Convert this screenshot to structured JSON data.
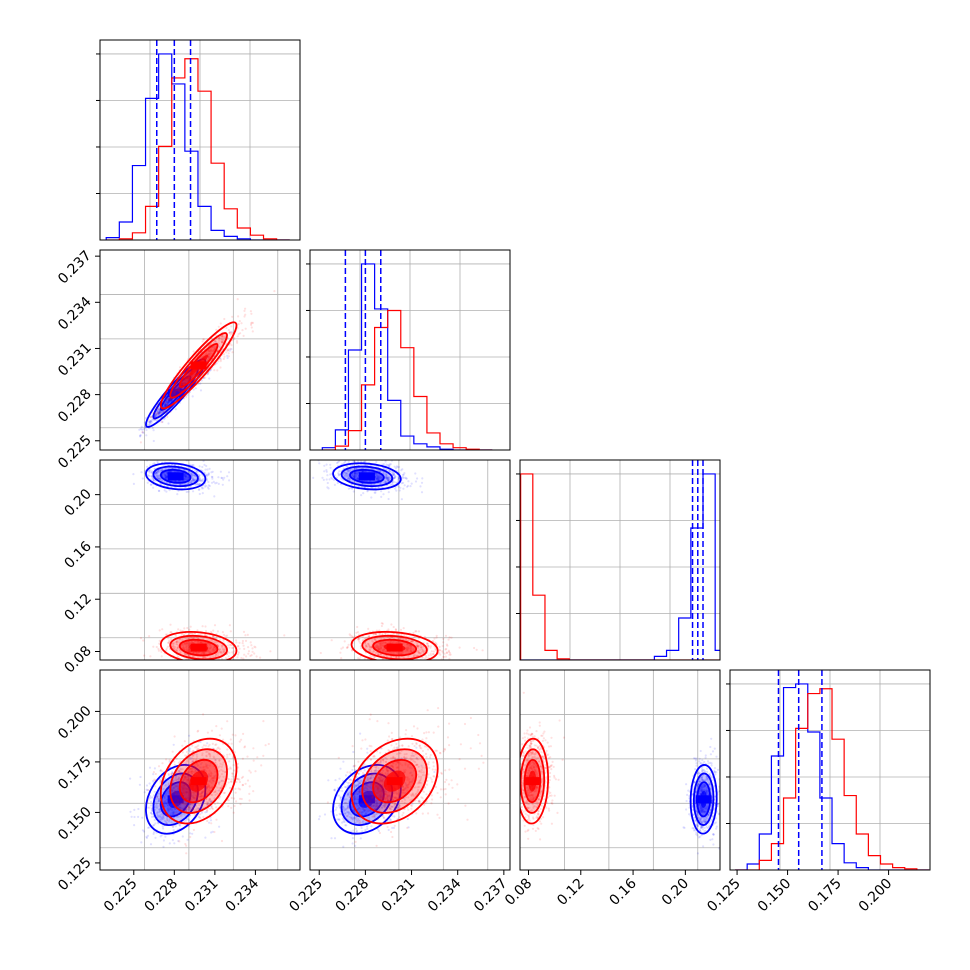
{
  "colors": {
    "series_a": "#0000ff",
    "series_b": "#ff0000",
    "grid": "#b0b0b0",
    "axes": "#000000"
  },
  "chart_data": {
    "type": "corner",
    "grid": true,
    "series": [
      {
        "color": "#0000ff",
        "param_means": [
          0.2281,
          0.2281,
          0.214,
          0.1565
        ],
        "param_stds": [
          0.0011,
          0.0011,
          0.005,
          0.0085
        ],
        "quantiles": [
          [
            0.2267,
            0.228,
            0.2292
          ],
          [
            0.2267,
            0.228,
            0.229
          ],
          [
            0.2055,
            0.2095,
            0.2135
          ],
          [
            0.1455,
            0.1555,
            0.167
          ]
        ]
      },
      {
        "color": "#ff0000",
        "param_means": [
          0.2298,
          0.2299,
          0.083,
          0.1655
        ],
        "param_stds": [
          0.0014,
          0.0014,
          0.006,
          0.0105
        ],
        "quantiles": null
      }
    ],
    "panels": [
      {
        "kind": "hist",
        "param": 0,
        "xlim": [
          0.2225,
          0.2373
        ],
        "xticks": [],
        "hists": [
          {
            "series": 0,
            "bins": [
              0.22296,
              0.22393,
              0.2249,
              0.22587,
              0.22684,
              0.22781,
              0.22878,
              0.22975,
              0.23072,
              0.23169,
              0.23266,
              0.23363,
              0.2346,
              0.23557,
              0.23654
            ],
            "counts": [
              2,
              15,
              62,
              118,
              155,
              130,
              74,
              28,
              8,
              3,
              1,
              0,
              0,
              0
            ]
          },
          {
            "series": 1,
            "bins": [
              0.22296,
              0.22393,
              0.2249,
              0.22587,
              0.22684,
              0.22781,
              0.22878,
              0.22975,
              0.23072,
              0.23169,
              0.23266,
              0.23363,
              0.2346,
              0.23557,
              0.23654
            ],
            "counts": [
              0,
              1,
              6,
              28,
              78,
              135,
              151,
              124,
              64,
              26,
              10,
              4,
              1,
              0
            ]
          }
        ]
      },
      {
        "kind": "hist",
        "param": 1,
        "xlim": [
          0.2244,
          0.2374
        ],
        "xticks": [],
        "hists": [
          {
            "series": 0,
            "bins": [
              0.2252,
              0.22605,
              0.2269,
              0.22775,
              0.2286,
              0.22945,
              0.2303,
              0.23115,
              0.232,
              0.23285,
              0.2337,
              0.23455,
              0.2354,
              0.23625
            ],
            "counts": [
              3,
              26,
              129,
              240,
              182,
              64,
              18,
              8,
              4,
              1,
              0,
              0,
              0
            ]
          },
          {
            "series": 1,
            "bins": [
              0.2252,
              0.22605,
              0.2269,
              0.22775,
              0.2286,
              0.22945,
              0.2303,
              0.23115,
              0.232,
              0.23285,
              0.2337,
              0.23455,
              0.2354,
              0.23625
            ],
            "counts": [
              0,
              5,
              25,
              84,
              158,
              180,
              132,
              69,
              22,
              8,
              3,
              1,
              0
            ]
          }
        ]
      },
      {
        "kind": "hist",
        "param": 2,
        "xlim": [
          0.0735,
          0.2265
        ],
        "xticks": [],
        "hists": [
          {
            "series": 0,
            "bins": [
              0.074,
              0.0833,
              0.0926,
              0.1019,
              0.1112,
              0.1205,
              0.1298,
              0.1391,
              0.1484,
              0.1577,
              0.167,
              0.1763,
              0.1856,
              0.1949,
              0.2042,
              0.2135,
              0.2228,
              0.2265
            ],
            "counts": [
              0,
              0,
              0,
              0,
              0,
              0,
              0,
              0,
              0,
              0,
              0,
              3,
              8,
              35,
              110,
              155,
              8
            ]
          },
          {
            "series": 1,
            "bins": [
              0.074,
              0.0833,
              0.0926,
              0.1019,
              0.1112,
              0.1205,
              0.1298,
              0.1391,
              0.1484,
              0.1577,
              0.167,
              0.1763,
              0.1856,
              0.1949,
              0.2042,
              0.2135,
              0.2228,
              0.2265
            ],
            "counts": [
              155,
              54,
              8,
              1,
              0,
              0,
              0,
              0,
              0,
              0,
              0,
              0,
              0,
              0,
              0,
              0,
              0
            ]
          }
        ]
      },
      {
        "kind": "hist",
        "param": 3,
        "xlim": [
          0.1215,
          0.2205
        ],
        "xticks": [
          0.125,
          0.15,
          0.175,
          0.2
        ],
        "hists": [
          {
            "series": 0,
            "bins": [
              0.124,
              0.13,
              0.136,
              0.142,
              0.148,
              0.154,
              0.16,
              0.166,
              0.172,
              0.178,
              0.184,
              0.19,
              0.196,
              0.202,
              0.208,
              0.214,
              0.22
            ],
            "counts": [
              0,
              5,
              30,
              95,
              152,
              155,
              115,
              60,
              22,
              6,
              2,
              0,
              0,
              0,
              0,
              0
            ]
          },
          {
            "series": 1,
            "bins": [
              0.124,
              0.13,
              0.136,
              0.142,
              0.148,
              0.154,
              0.16,
              0.166,
              0.172,
              0.178,
              0.184,
              0.19,
              0.196,
              0.202,
              0.208,
              0.214,
              0.22
            ],
            "counts": [
              0,
              0,
              8,
              22,
              60,
              118,
              147,
              151,
              109,
              62,
              30,
              12,
              5,
              2,
              1,
              0
            ]
          }
        ]
      },
      {
        "kind": "scatter",
        "xparam": 0,
        "yparam": 1,
        "xlim": [
          0.2225,
          0.2373
        ],
        "ylim": [
          0.2244,
          0.2374
        ],
        "yticks": [
          0.225,
          0.228,
          0.231,
          0.234,
          0.237
        ],
        "corr": 0.93
      },
      {
        "kind": "scatter",
        "xparam": 0,
        "yparam": 2,
        "xlim": [
          0.2225,
          0.2373
        ],
        "ylim": [
          0.0735,
          0.2265
        ],
        "yticks": [
          0.08,
          0.12,
          0.16,
          0.2
        ],
        "corr": -0.2
      },
      {
        "kind": "scatter",
        "xparam": 1,
        "yparam": 2,
        "xlim": [
          0.2244,
          0.2374
        ],
        "ylim": [
          0.0735,
          0.2265
        ],
        "corr": -0.2
      },
      {
        "kind": "scatter",
        "xparam": 0,
        "yparam": 3,
        "xlim": [
          0.2225,
          0.2373
        ],
        "ylim": [
          0.1215,
          0.2205
        ],
        "xticks": [
          0.225,
          0.228,
          0.231,
          0.234
        ],
        "yticks": [
          0.125,
          0.15,
          0.175,
          0.2
        ],
        "corr": 0.3
      },
      {
        "kind": "scatter",
        "xparam": 1,
        "yparam": 3,
        "xlim": [
          0.2244,
          0.2374
        ],
        "ylim": [
          0.1215,
          0.2205
        ],
        "xticks": [
          0.225,
          0.228,
          0.231,
          0.234,
          0.237
        ],
        "corr": 0.3
      },
      {
        "kind": "scatter",
        "xparam": 2,
        "yparam": 3,
        "xlim": [
          0.0735,
          0.2265
        ],
        "ylim": [
          0.1215,
          0.2205
        ],
        "xticks": [
          0.08,
          0.12,
          0.16,
          0.2
        ],
        "corr": 0.05
      }
    ],
    "tick_labels": {
      "p0": [
        "0.225",
        "0.228",
        "0.231",
        "0.234"
      ],
      "p1": [
        "0.225",
        "0.228",
        "0.231",
        "0.234",
        "0.237"
      ],
      "p2": [
        "0.08",
        "0.12",
        "0.16",
        "0.20"
      ],
      "p3": [
        "0.125",
        "0.150",
        "0.175",
        "0.200"
      ]
    }
  }
}
